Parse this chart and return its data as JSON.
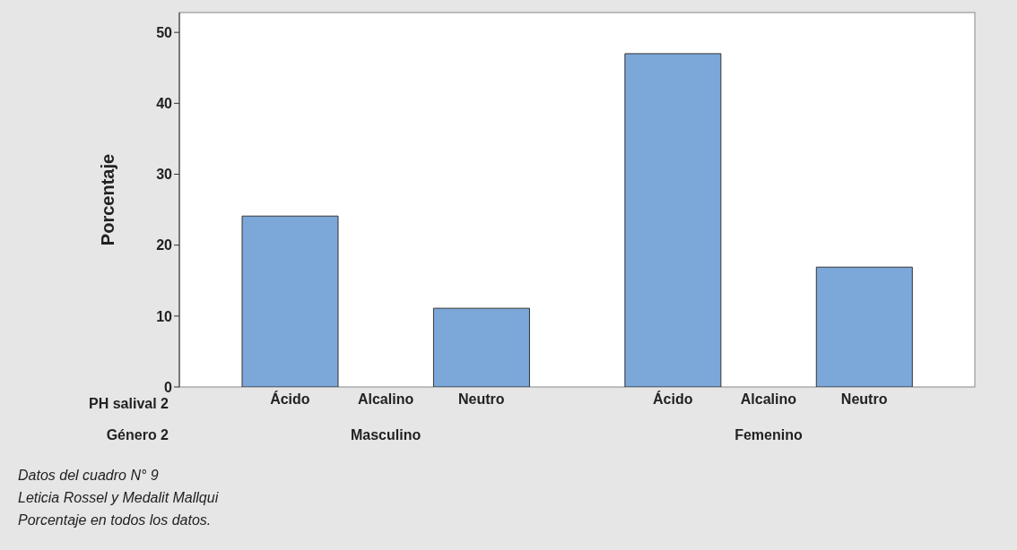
{
  "chart_data": {
    "type": "bar",
    "ylabel": "Porcentaje",
    "categories": [
      "Ácido",
      "Alcalino",
      "Neutro",
      null,
      "Ácido",
      "Alcalino",
      "Neutro"
    ],
    "values": [
      24.1,
      0,
      11.1,
      null,
      47.0,
      0,
      16.9
    ],
    "color": "#7ba7d9",
    "ylim": [
      0,
      52.8
    ],
    "yticks": [
      0,
      10,
      20,
      30,
      40,
      50
    ],
    "grid": false,
    "legend": false,
    "annotations": [
      "PH salival 2",
      "Género 2",
      "Masculino",
      "Femenino",
      "Datos del cuadro N° 9",
      "Leticia Rossel y Medalit Mallqui",
      "Porcentaje en todos los datos."
    ]
  }
}
